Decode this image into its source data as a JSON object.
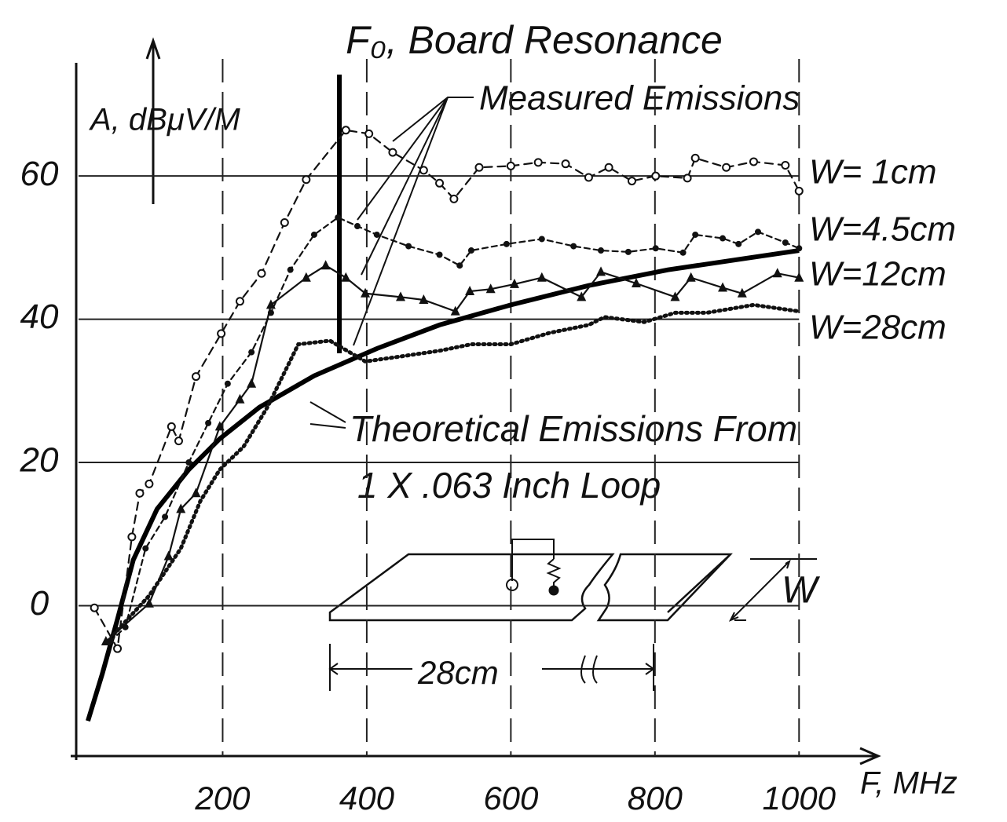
{
  "chart_data": {
    "type": "line",
    "title": "F₀, Board Resonance",
    "y_label": "A, dBμV/M",
    "x_label": "F, MHz",
    "annotations": [
      "Measured Emissions",
      "Theoretical Emissions From",
      "1 X .063 Inch Loop",
      "28cm",
      "W"
    ],
    "xlim": [
      0,
      1100
    ],
    "ylim": [
      -21,
      78
    ],
    "xticks": [
      200,
      400,
      600,
      800,
      1000
    ],
    "yticks": [
      0,
      20,
      40,
      60
    ],
    "grid": true,
    "resonance_x": 362,
    "series": [
      {
        "name": "W= 1cm",
        "color": "#111111",
        "marker": "circle-open",
        "dash": "10,7",
        "x": [
          22,
          54,
          74,
          85,
          98,
          129,
          139,
          163,
          198,
          224,
          254,
          286,
          316,
          371,
          403,
          436,
          479,
          501,
          521,
          556,
          600,
          638,
          676,
          708,
          736,
          768,
          801,
          845,
          856,
          899,
          937,
          981,
          1000
        ],
        "values": [
          -0.3,
          -6,
          9.6,
          15.7,
          17,
          25,
          23,
          32,
          38,
          42.5,
          46.4,
          53.5,
          59.5,
          66.4,
          65.9,
          63.3,
          60.8,
          59,
          56.8,
          61.2,
          61.4,
          61.9,
          61.7,
          59.8,
          61.2,
          59.3,
          60,
          59.7,
          62.5,
          61.2,
          62,
          61.5,
          57.9
        ]
      },
      {
        "name": "W=4.5cm",
        "color": "#111111",
        "marker": "dot",
        "dash": "7,5",
        "x": [
          44,
          65,
          93,
          120,
          153,
          180,
          207,
          240,
          267,
          294,
          327,
          360,
          387,
          414,
          458,
          501,
          529,
          545,
          594,
          643,
          687,
          725,
          763,
          801,
          839,
          856,
          894,
          916,
          943,
          981,
          1000
        ],
        "values": [
          -5,
          -3,
          8,
          12.4,
          20,
          25.5,
          31,
          35.4,
          40.9,
          46.9,
          51.8,
          54.2,
          53,
          51.8,
          50.2,
          49,
          47.5,
          49.6,
          50.5,
          51.2,
          50.2,
          49.6,
          49.4,
          49.9,
          49.3,
          51.8,
          51.3,
          50.5,
          52.2,
          50.7,
          49.9
        ]
      },
      {
        "name": "W=12cm",
        "color": "#111111",
        "marker": "triangle",
        "dash": "none",
        "x": [
          38,
          98,
          125,
          142,
          163,
          196,
          224,
          240,
          267,
          316,
          343,
          371,
          398,
          447,
          479,
          523,
          543,
          572,
          605,
          643,
          698,
          725,
          774,
          828,
          850,
          894,
          921,
          970,
          1000
        ],
        "values": [
          -5,
          0.3,
          6.9,
          13.5,
          15.7,
          25,
          28.8,
          31,
          42,
          45.8,
          47.5,
          45.8,
          43.6,
          43.1,
          42.7,
          41.1,
          43.9,
          44.2,
          44.9,
          45.8,
          43.1,
          46.6,
          45,
          43.1,
          45.8,
          44.4,
          43.6,
          46.4,
          45.8
        ]
      },
      {
        "name": "W=28cm",
        "color": "#111111",
        "marker": "none",
        "dash": "2,5",
        "x": [
          49,
          98,
          142,
          169,
          196,
          229,
          262,
          283,
          305,
          349,
          398,
          447,
          501,
          545,
          600,
          654,
          708,
          730,
          785,
          828,
          872,
          937,
          1000
        ],
        "values": [
          -4,
          1.4,
          8,
          14.6,
          19,
          22.2,
          27.7,
          32,
          36.5,
          37,
          34.1,
          34.8,
          35.6,
          36.5,
          36.5,
          38.1,
          39.2,
          40.3,
          39.6,
          40.9,
          40.9,
          42,
          41.1
        ]
      }
    ],
    "theoretical": {
      "color": "#000000",
      "x": [
        13,
        33,
        54,
        76,
        109,
        153,
        196,
        251,
        327,
        414,
        501,
        600,
        708,
        818,
        926,
        1000
      ],
      "values": [
        -16.1,
        -9.5,
        -1.9,
        6.4,
        13.5,
        19,
        23.3,
        27.7,
        32.1,
        35.9,
        39.2,
        42,
        44.7,
        46.9,
        48.5,
        49.6
      ]
    }
  }
}
